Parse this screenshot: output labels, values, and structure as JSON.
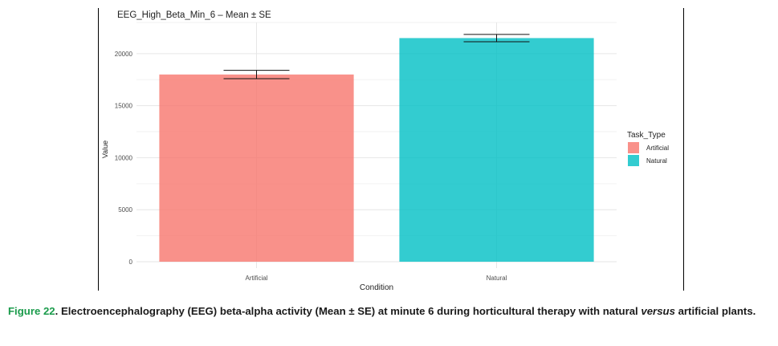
{
  "chart_data": {
    "type": "bar",
    "title": "EEG_High_Beta_Min_6 – Mean ± SE",
    "xlabel": "Condition",
    "ylabel": "Value",
    "categories": [
      "Artificial",
      "Natural"
    ],
    "values": [
      18000,
      21500
    ],
    "se": [
      400,
      350
    ],
    "colors": [
      "#f8766d",
      "#00bfc4"
    ],
    "ylim": [
      0,
      23000
    ],
    "yticks": [
      0,
      5000,
      10000,
      15000,
      20000
    ],
    "grid": true,
    "legend": {
      "title": "Task_Type",
      "entries": [
        "Artificial",
        "Natural"
      ],
      "placement": "right"
    }
  },
  "caption": {
    "label": "Figure 22",
    "text_before": ". Electroencephalography (EEG) beta-alpha activity (Mean ± SE) at minute 6 during horticultural therapy with natural ",
    "italic": "versus",
    "text_after": " artificial plants."
  }
}
